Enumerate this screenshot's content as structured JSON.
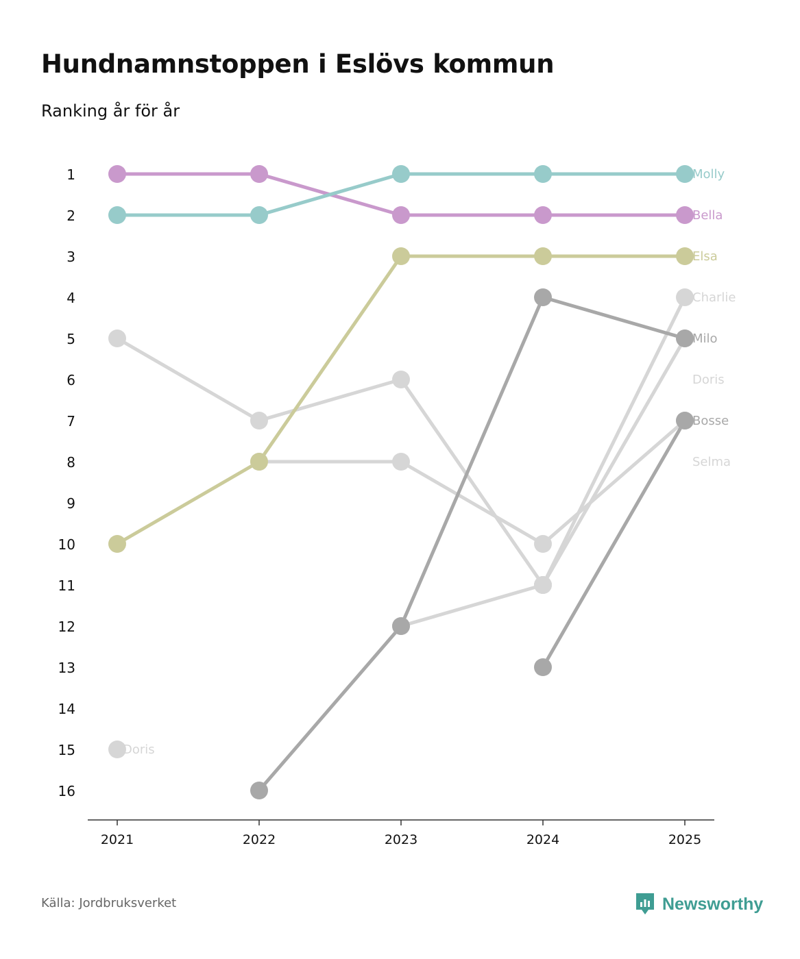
{
  "header": {
    "title": "Hundnamnstoppen i Eslövs kommun",
    "subtitle": "Ranking år för år"
  },
  "footer": {
    "source": "Källa: Jordbruksverket",
    "brand": "Newsworthy",
    "brand_color": "#3f9d93"
  },
  "chart_data": {
    "type": "line",
    "title": "Hundnamnstoppen i Eslövs kommun",
    "subtitle": "Ranking år för år",
    "xlabel": "",
    "ylabel": "",
    "x": [
      "2021",
      "2022",
      "2023",
      "2024",
      "2025"
    ],
    "y_ticks": [
      1,
      2,
      3,
      4,
      5,
      6,
      7,
      8,
      9,
      10,
      11,
      12,
      13,
      14,
      15,
      16
    ],
    "ylim": [
      16,
      1
    ],
    "y_inverted": true,
    "grid": false,
    "series": [
      {
        "name": "Selma",
        "color": "#d6d6d6",
        "values": [
          5,
          7,
          6,
          11,
          null
        ],
        "label": ""
      },
      {
        "name": "Doris",
        "color": "#d6d6d6",
        "values": [
          15,
          null,
          null,
          null,
          null
        ],
        "label": "Doris"
      },
      {
        "name": "Selma b",
        "color": "#d6d6d6",
        "values": [
          null,
          8,
          8,
          10,
          7
        ],
        "label": "Selma"
      },
      {
        "name": "Doris b",
        "color": "#d6d6d6",
        "values": [
          null,
          null,
          12,
          11,
          5
        ],
        "label": "Doris"
      },
      {
        "name": "Charlie",
        "color": "#d6d6d6",
        "values": [
          null,
          null,
          null,
          11,
          4
        ],
        "label": "Charlie"
      },
      {
        "name": "Milo",
        "color": "#a8a8a8",
        "values": [
          null,
          16,
          12,
          4,
          5
        ],
        "label": "Milo"
      },
      {
        "name": "Bosse",
        "color": "#a8a8a8",
        "values": [
          null,
          null,
          null,
          13,
          7
        ],
        "label": "Bosse"
      },
      {
        "name": "Elsa",
        "color": "#cbcb9a",
        "values": [
          10,
          8,
          3,
          3,
          3
        ],
        "label": "Elsa"
      },
      {
        "name": "Bella",
        "color": "#c999cc",
        "values": [
          1,
          1,
          2,
          2,
          2
        ],
        "label": "Bella"
      },
      {
        "name": "Molly",
        "color": "#97cbca",
        "values": [
          2,
          2,
          1,
          1,
          1
        ],
        "label": "Molly"
      }
    ],
    "end_labels": [
      {
        "text": "Molly",
        "rank": 1,
        "color": "#97cbca"
      },
      {
        "text": "Bella",
        "rank": 2,
        "color": "#c999cc"
      },
      {
        "text": "Elsa",
        "rank": 3,
        "color": "#cbcb9a"
      },
      {
        "text": "Charlie",
        "rank": 4,
        "color": "#d6d6d6"
      },
      {
        "text": "Milo",
        "rank": 5,
        "color": "#a8a8a8"
      },
      {
        "text": "Doris",
        "rank": 6,
        "color": "#d6d6d6"
      },
      {
        "text": "Bosse",
        "rank": 7,
        "color": "#a8a8a8"
      },
      {
        "text": "Selma",
        "rank": 8,
        "color": "#d6d6d6"
      }
    ],
    "start_labels": [
      {
        "text": "Doris",
        "rank": 15,
        "year_index": 0,
        "color": "#d6d6d6"
      }
    ]
  }
}
